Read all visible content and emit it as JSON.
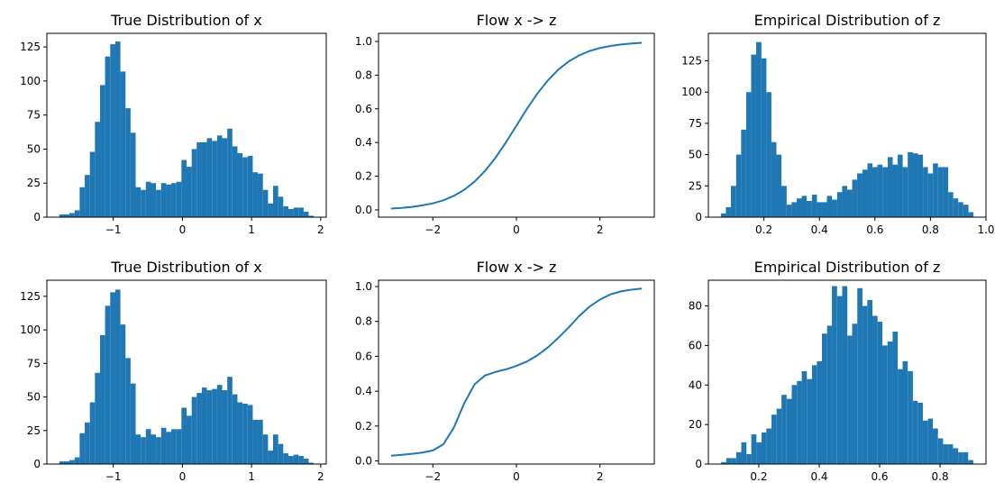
{
  "chart_data": [
    {
      "type": "histogram",
      "title": "True Distribution of x",
      "color": "#1f77b4",
      "bins": [
        -1.78,
        -1.706,
        -1.633,
        -1.559,
        -1.486,
        -1.412,
        -1.338,
        -1.265,
        -1.191,
        -1.118,
        -1.044,
        -0.97,
        -0.897,
        -0.823,
        -0.75,
        -0.676,
        -0.602,
        -0.529,
        -0.455,
        -0.382,
        -0.308,
        -0.234,
        -0.161,
        -0.087,
        -0.014,
        0.06,
        0.134,
        0.207,
        0.281,
        0.354,
        0.428,
        0.502,
        0.575,
        0.649,
        0.722,
        0.796,
        0.87,
        0.943,
        1.017,
        1.09,
        1.164,
        1.238,
        1.311,
        1.385,
        1.458,
        1.532,
        1.606,
        1.679,
        1.753,
        1.826,
        1.9
      ],
      "values": [
        2,
        2,
        3,
        5,
        22,
        31,
        48,
        70,
        97,
        118,
        127,
        129,
        107,
        80,
        62,
        22,
        20,
        26,
        25,
        20,
        25,
        24,
        25,
        26,
        42,
        37,
        50,
        55,
        55,
        58,
        56,
        60,
        58,
        65,
        52,
        47,
        44,
        45,
        33,
        32,
        20,
        10,
        23,
        15,
        8,
        6,
        7,
        7,
        4,
        1
      ],
      "xlim": [
        -1.96,
        2.08
      ],
      "xticks": [
        {
          "value": -1,
          "label": "−1"
        },
        0,
        1,
        2
      ],
      "ylim": [
        0,
        135
      ],
      "yticks": [
        0,
        25,
        50,
        75,
        100,
        125
      ]
    },
    {
      "type": "line",
      "title": "Flow x -> z",
      "color": "#1f77b4",
      "x": [
        -3,
        -2.75,
        -2.5,
        -2.25,
        -2,
        -1.75,
        -1.5,
        -1.25,
        -1,
        -0.75,
        -0.5,
        -0.25,
        0,
        0.25,
        0.5,
        0.75,
        1,
        1.25,
        1.5,
        1.75,
        2,
        2.25,
        2.5,
        2.75,
        3
      ],
      "values": [
        0.008,
        0.012,
        0.018,
        0.027,
        0.039,
        0.057,
        0.083,
        0.119,
        0.168,
        0.232,
        0.31,
        0.401,
        0.5,
        0.599,
        0.69,
        0.768,
        0.832,
        0.881,
        0.917,
        0.943,
        0.961,
        0.973,
        0.982,
        0.988,
        0.992
      ],
      "xlim": [
        -3.3,
        3.3
      ],
      "xticks": [
        {
          "value": -2,
          "label": "−2"
        },
        0,
        2
      ],
      "ylim": [
        -0.043,
        1.048
      ],
      "yticks": [
        {
          "value": 0,
          "label": "0.0"
        },
        0.2,
        0.4,
        0.6,
        0.8,
        {
          "value": 1,
          "label": "1.0"
        }
      ]
    },
    {
      "type": "histogram",
      "title": "Empirical Distribution of z",
      "color": "#1f77b4",
      "bins": [
        0.045,
        0.063,
        0.081,
        0.1,
        0.118,
        0.136,
        0.154,
        0.172,
        0.191,
        0.209,
        0.227,
        0.245,
        0.263,
        0.282,
        0.3,
        0.318,
        0.336,
        0.354,
        0.373,
        0.391,
        0.409,
        0.427,
        0.445,
        0.464,
        0.482,
        0.5,
        0.518,
        0.536,
        0.555,
        0.573,
        0.591,
        0.609,
        0.627,
        0.646,
        0.664,
        0.682,
        0.7,
        0.718,
        0.737,
        0.755,
        0.773,
        0.791,
        0.809,
        0.827,
        0.846,
        0.864,
        0.882,
        0.9,
        0.918,
        0.937,
        0.955
      ],
      "values": [
        3,
        8,
        25,
        50,
        70,
        100,
        130,
        140,
        127,
        100,
        60,
        50,
        25,
        10,
        12,
        15,
        17,
        13,
        18,
        12,
        12,
        17,
        14,
        20,
        25,
        22,
        30,
        35,
        38,
        43,
        40,
        42,
        40,
        48,
        42,
        50,
        40,
        52,
        51,
        50,
        40,
        35,
        43,
        40,
        40,
        20,
        15,
        12,
        10,
        4
      ],
      "xlim": [
        0.0,
        1.0
      ],
      "xticks": [
        0.2,
        0.4,
        0.6,
        0.8,
        {
          "value": 1,
          "label": "1.0"
        }
      ],
      "ylim": [
        0,
        147
      ],
      "yticks": [
        0,
        25,
        50,
        75,
        100,
        125
      ]
    },
    {
      "type": "histogram",
      "title": "True Distribution of x",
      "color": "#1f77b4",
      "bins": [
        -1.78,
        -1.706,
        -1.633,
        -1.559,
        -1.486,
        -1.412,
        -1.338,
        -1.265,
        -1.191,
        -1.118,
        -1.044,
        -0.97,
        -0.897,
        -0.823,
        -0.75,
        -0.676,
        -0.602,
        -0.529,
        -0.455,
        -0.382,
        -0.308,
        -0.234,
        -0.161,
        -0.087,
        -0.014,
        0.06,
        0.134,
        0.207,
        0.281,
        0.354,
        0.428,
        0.502,
        0.575,
        0.649,
        0.722,
        0.796,
        0.87,
        0.943,
        1.017,
        1.09,
        1.164,
        1.238,
        1.311,
        1.385,
        1.458,
        1.532,
        1.606,
        1.679,
        1.753,
        1.826,
        1.9
      ],
      "values": [
        2,
        2,
        3,
        5,
        23,
        31,
        46,
        68,
        96,
        118,
        128,
        130,
        104,
        79,
        60,
        22,
        20,
        26,
        22,
        20,
        27,
        24,
        26,
        26,
        42,
        36,
        50,
        53,
        57,
        55,
        56,
        59,
        55,
        65,
        52,
        46,
        45,
        44,
        33,
        33,
        22,
        10,
        22,
        15,
        8,
        6,
        7,
        6,
        4,
        1
      ],
      "xlim": [
        -1.96,
        2.08
      ],
      "xticks": [
        {
          "value": -1,
          "label": "−1"
        },
        0,
        1,
        2
      ],
      "ylim": [
        0,
        137
      ],
      "yticks": [
        0,
        25,
        50,
        75,
        100,
        125
      ]
    },
    {
      "type": "line",
      "title": "Flow x -> z",
      "color": "#1f77b4",
      "x": [
        -3,
        -2.75,
        -2.5,
        -2.25,
        -2,
        -1.75,
        -1.5,
        -1.25,
        -1,
        -0.75,
        -0.5,
        -0.25,
        0,
        0.25,
        0.5,
        0.75,
        1,
        1.25,
        1.5,
        1.75,
        2,
        2.25,
        2.5,
        2.75,
        3
      ],
      "values": [
        0.03,
        0.035,
        0.041,
        0.048,
        0.06,
        0.095,
        0.19,
        0.33,
        0.44,
        0.49,
        0.51,
        0.525,
        0.545,
        0.57,
        0.605,
        0.65,
        0.705,
        0.765,
        0.83,
        0.885,
        0.925,
        0.955,
        0.972,
        0.982,
        0.988
      ],
      "xlim": [
        -3.3,
        3.3
      ],
      "xticks": [
        {
          "value": -2,
          "label": "−2"
        },
        0,
        2
      ],
      "ylim": [
        -0.018,
        1.036
      ],
      "yticks": [
        {
          "value": 0,
          "label": "0.0"
        },
        0.2,
        0.4,
        0.6,
        0.8,
        {
          "value": 1,
          "label": "1.0"
        }
      ]
    },
    {
      "type": "histogram",
      "title": "Empirical Distribution of z",
      "color": "#1f77b4",
      "bins": [
        0.075,
        0.092,
        0.108,
        0.125,
        0.142,
        0.159,
        0.175,
        0.192,
        0.209,
        0.225,
        0.242,
        0.259,
        0.275,
        0.292,
        0.309,
        0.326,
        0.342,
        0.359,
        0.376,
        0.392,
        0.409,
        0.426,
        0.442,
        0.459,
        0.476,
        0.493,
        0.509,
        0.526,
        0.543,
        0.559,
        0.576,
        0.593,
        0.609,
        0.626,
        0.643,
        0.66,
        0.676,
        0.693,
        0.71,
        0.726,
        0.743,
        0.76,
        0.776,
        0.793,
        0.81,
        0.827,
        0.843,
        0.86,
        0.877,
        0.893,
        0.91
      ],
      "values": [
        1,
        3,
        3,
        6,
        11,
        5,
        15,
        11,
        16,
        18,
        25,
        28,
        35,
        33,
        40,
        42,
        47,
        43,
        50,
        52,
        66,
        70,
        90,
        85,
        90,
        65,
        71,
        89,
        80,
        83,
        75,
        72,
        60,
        62,
        67,
        48,
        52,
        47,
        32,
        31,
        22,
        23,
        18,
        13,
        10,
        10,
        8,
        6,
        6,
        2
      ],
      "xlim": [
        0.033,
        0.952
      ],
      "xticks": [
        0.2,
        0.4,
        0.6,
        0.8
      ],
      "ylim": [
        0,
        93
      ],
      "yticks": [
        0,
        20,
        40,
        60,
        80
      ]
    }
  ]
}
